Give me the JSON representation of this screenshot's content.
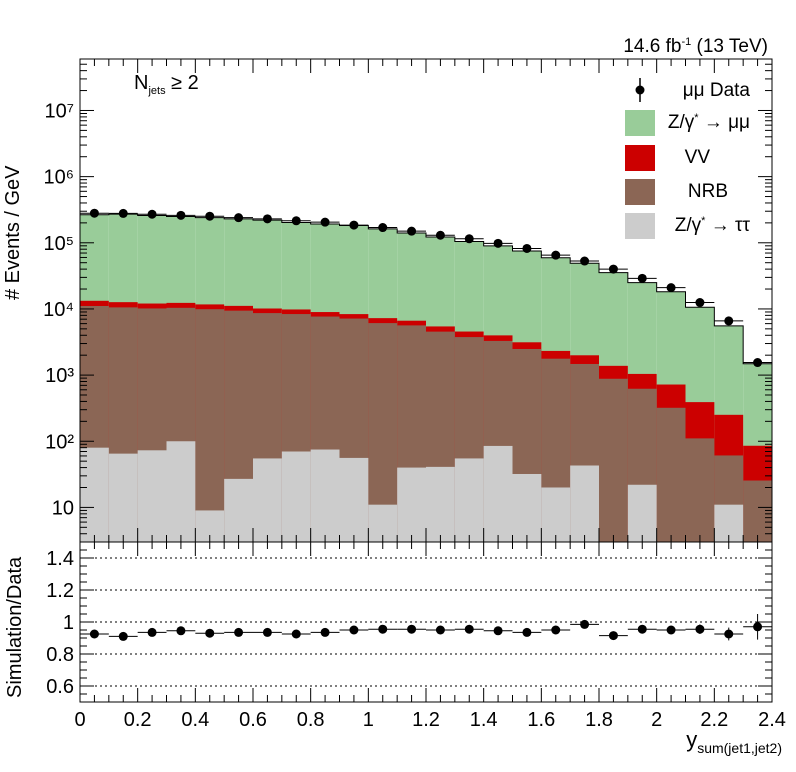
{
  "header": {
    "lumi_value": "14.6 fb",
    "lumi_exp": "-1",
    "lumi_energy": " (13 TeV)",
    "selection_main": "N",
    "selection_sub": "jets",
    "selection_cut": " ≥ 2"
  },
  "axes": {
    "top_ylabel": "# Events / GeV",
    "bottom_ylabel": "Simulation/Data",
    "xlabel_main": "y",
    "xlabel_sub": "sum(jet1,jet2)"
  },
  "legend": {
    "data_label": "μμ Data",
    "zmm_label_a": "Z/γ",
    "zmm_label_b": " → μμ",
    "vv_label": "VV",
    "nrb_label": "NRB",
    "ztt_label_a": "Z/γ",
    "ztt_label_b": " → ττ",
    "star": "*"
  },
  "colors": {
    "zmm": "#99cc99",
    "vv": "#cc0000",
    "nrb": "#8b6655",
    "ztt": "#cccccc",
    "data": "#000000"
  },
  "chart_data": [
    {
      "type": "area",
      "panel": "main",
      "stacked": true,
      "log_y": true,
      "xlim": [
        0,
        2.4
      ],
      "ylim": [
        3,
        60000000
      ],
      "bin_width": 0.1,
      "x": [
        0.05,
        0.15,
        0.25,
        0.35,
        0.45,
        0.55,
        0.65,
        0.75,
        0.85,
        0.95,
        1.05,
        1.15,
        1.25,
        1.35,
        1.45,
        1.55,
        1.65,
        1.75,
        1.85,
        1.95,
        2.05,
        2.15,
        2.25,
        2.35
      ],
      "y_tick_labels": [
        "10",
        "10²",
        "10³",
        "10⁴",
        "10⁵",
        "10⁶",
        "10⁷"
      ],
      "x_tick_labels": [
        "0",
        "0.2",
        "0.4",
        "0.6",
        "0.8",
        "1",
        "1.2",
        "1.4",
        "1.6",
        "1.8",
        "2",
        "2.2",
        "2.4"
      ],
      "series": [
        {
          "name": "Z/γ* → ττ",
          "values": [
            80,
            65,
            73,
            100,
            9,
            27,
            55,
            70,
            75,
            56,
            11,
            40,
            41,
            55,
            85,
            32,
            20,
            43,
            0.5,
            22,
            0.5,
            0.5,
            11,
            0.5
          ]
        },
        {
          "name": "NRB",
          "values": [
            11000,
            10500,
            10100,
            10300,
            9900,
            9400,
            8600,
            8300,
            7600,
            7100,
            6100,
            5600,
            4500,
            3700,
            3200,
            2450,
            1750,
            1430,
            880,
            600,
            320,
            110,
            50,
            25
          ]
        },
        {
          "name": "VV",
          "values": [
            2200,
            2100,
            1900,
            1950,
            1800,
            1700,
            1500,
            1450,
            1300,
            1200,
            1150,
            1000,
            900,
            800,
            700,
            650,
            550,
            520,
            500,
            420,
            400,
            280,
            190,
            60
          ]
        },
        {
          "name": "Z/γ* → μμ",
          "values": [
            252000,
            258000,
            247000,
            237000,
            228000,
            219000,
            210000,
            193000,
            183000,
            174000,
            155000,
            134000,
            117000,
            100000,
            86000,
            72000,
            57000,
            47000,
            34000,
            24000,
            17500,
            10200,
            5300,
            1400
          ]
        },
        {
          "name": "μμ Data",
          "values": [
            280000,
            278000,
            270000,
            260000,
            252000,
            240000,
            230000,
            215000,
            205000,
            185000,
            170000,
            150000,
            130000,
            115000,
            98000,
            82000,
            65000,
            53000,
            40000,
            29000,
            21000,
            12500,
            6600,
            1550
          ]
        }
      ]
    },
    {
      "type": "scatter",
      "panel": "ratio",
      "xlim": [
        0,
        2.4
      ],
      "ylim": [
        0.5,
        1.5
      ],
      "grid_y": [
        0.6,
        0.8,
        1.0,
        1.2,
        1.4
      ],
      "y_tick_labels": [
        "0.6",
        "0.8",
        "1",
        "1.2",
        "1.4"
      ],
      "x": [
        0.05,
        0.15,
        0.25,
        0.35,
        0.45,
        0.55,
        0.65,
        0.75,
        0.85,
        0.95,
        1.05,
        1.15,
        1.25,
        1.35,
        1.45,
        1.55,
        1.65,
        1.75,
        1.85,
        1.95,
        2.05,
        2.15,
        2.25,
        2.35
      ],
      "values": [
        0.925,
        0.91,
        0.935,
        0.945,
        0.93,
        0.935,
        0.935,
        0.925,
        0.935,
        0.95,
        0.955,
        0.955,
        0.95,
        0.955,
        0.945,
        0.935,
        0.95,
        0.985,
        0.915,
        0.955,
        0.95,
        0.955,
        0.925,
        0.97
      ],
      "errors": [
        0.005,
        0.005,
        0.005,
        0.005,
        0.005,
        0.005,
        0.005,
        0.005,
        0.005,
        0.006,
        0.006,
        0.006,
        0.007,
        0.007,
        0.008,
        0.009,
        0.01,
        0.012,
        0.015,
        0.02,
        0.025,
        0.03,
        0.04,
        0.08
      ]
    }
  ]
}
